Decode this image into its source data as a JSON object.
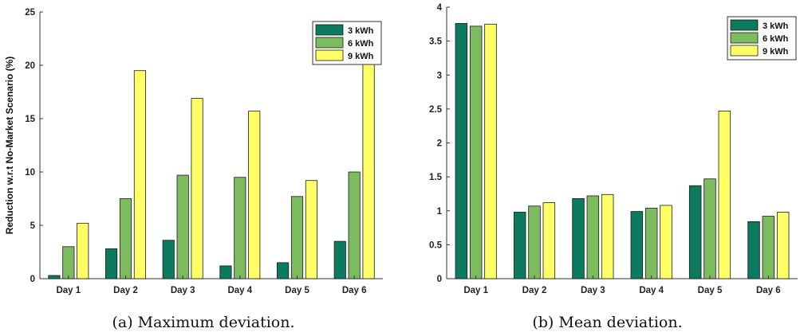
{
  "chart_data": [
    {
      "type": "bar",
      "categories": [
        "Day 1",
        "Day 2",
        "Day 3",
        "Day 4",
        "Day 5",
        "Day 6"
      ],
      "series": [
        {
          "name": "3 kWh",
          "values": [
            0.3,
            2.8,
            3.6,
            1.2,
            1.5,
            3.5
          ]
        },
        {
          "name": "6 kWh",
          "values": [
            3.0,
            7.5,
            9.7,
            9.5,
            7.7,
            10.0
          ]
        },
        {
          "name": "9 kWh",
          "values": [
            5.2,
            19.5,
            16.9,
            15.7,
            9.2,
            20.8
          ]
        }
      ],
      "ylabel": "Reduction w.r.t No-Market Scenario (%)",
      "xlabel": "",
      "ylim": [
        0,
        25
      ],
      "yticks": [
        0,
        5,
        10,
        15,
        20,
        25
      ],
      "grid": false,
      "legend": "top-right",
      "colors": [
        "#0b7a5f",
        "#7dbb5f",
        "#ffff66"
      ],
      "caption": "(a) Maximum deviation."
    },
    {
      "type": "bar",
      "categories": [
        "Day 1",
        "Day 2",
        "Day 3",
        "Day 4",
        "Day 5",
        "Day 6"
      ],
      "series": [
        {
          "name": "3 kWh",
          "values": [
            3.76,
            0.98,
            1.18,
            0.99,
            1.37,
            0.84
          ]
        },
        {
          "name": "6 kWh",
          "values": [
            3.72,
            1.07,
            1.22,
            1.04,
            1.47,
            0.92
          ]
        },
        {
          "name": "9 kWh",
          "values": [
            3.75,
            1.12,
            1.24,
            1.08,
            2.47,
            0.98
          ]
        }
      ],
      "ylabel": "",
      "xlabel": "",
      "ylim": [
        0,
        4
      ],
      "yticks": [
        0,
        0.5,
        1,
        1.5,
        2,
        2.5,
        3,
        3.5,
        4
      ],
      "grid": false,
      "legend": "top-right",
      "colors": [
        "#0b7a5f",
        "#7dbb5f",
        "#ffff66"
      ],
      "caption": "(b) Mean deviation."
    }
  ]
}
